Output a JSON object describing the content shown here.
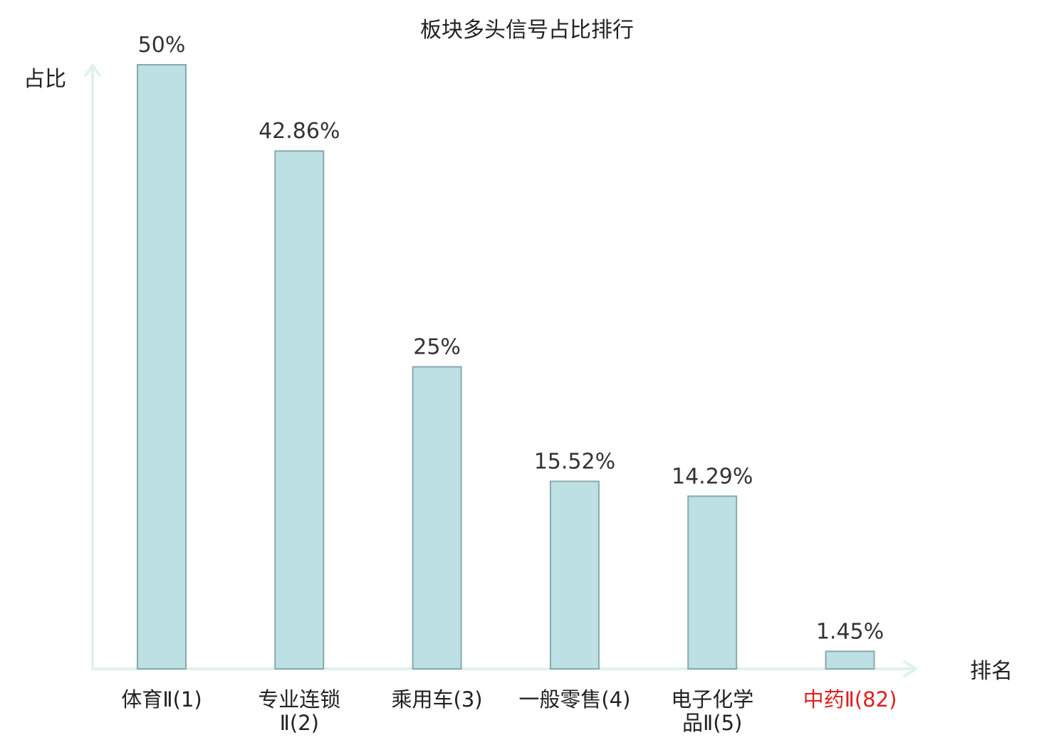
{
  "chart_data": {
    "type": "bar",
    "title": "板块多头信号占比排行",
    "ylabel": "占比",
    "xlabel": "排名",
    "categories": [
      [
        "体育Ⅱ(1)"
      ],
      [
        "专业连锁",
        "Ⅱ(2)"
      ],
      [
        "乘用车(3)"
      ],
      [
        "一般零售(4)"
      ],
      [
        "电子化学",
        "品Ⅱ(5)"
      ],
      [
        "中药Ⅱ(82)"
      ]
    ],
    "values": [
      50,
      42.86,
      25,
      15.52,
      14.29,
      1.45
    ],
    "value_labels": [
      "50%",
      "42.86%",
      "25%",
      "15.52%",
      "14.29%",
      "1.45%"
    ],
    "highlight_index": 5,
    "ylim": [
      0,
      50
    ],
    "grid": false,
    "colors": {
      "bar_fill": "#bce0e3",
      "bar_stroke": "#8aa8ab",
      "axis": "#e0f2ef",
      "highlight_text": "#e02020",
      "text": "#222222"
    }
  }
}
